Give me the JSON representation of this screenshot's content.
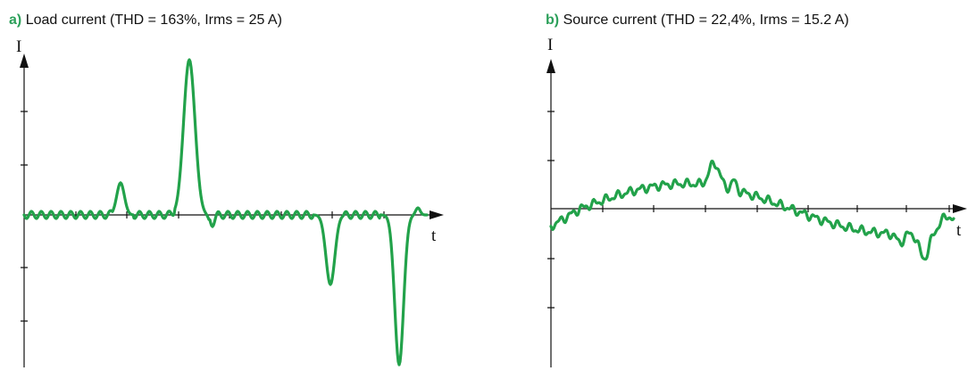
{
  "panels": [
    {
      "letter": "a)",
      "title": "Load current (THD = 163%, Irms = 25 A)",
      "y_axis": "I",
      "x_axis": "t"
    },
    {
      "letter": "b)",
      "title": "Source current (THD = 22,4%, Irms = 15.2 A)",
      "y_axis": "I",
      "x_axis": "t"
    }
  ]
}
